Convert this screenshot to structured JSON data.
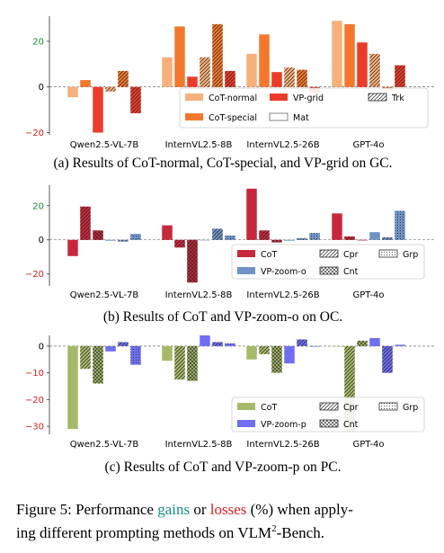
{
  "chart_data": [
    {
      "type": "bar",
      "caption": "(a) Results of CoT-normal, CoT-special, and VP-grid on GC.",
      "categories": [
        "Qwen2.5-VL-7B",
        "InternVL2.5-8B",
        "InternVL2.5-26B",
        "GPT-4o"
      ],
      "yticks": [
        -20,
        0,
        20
      ],
      "ylim": [
        -21,
        31
      ],
      "series": [
        {
          "name": "CoT-normal",
          "color": "#f8b07a",
          "hatch": "none",
          "values": [
            -4.5,
            13,
            14.5,
            29
          ]
        },
        {
          "name": "CoT-special",
          "color": "#f3782e",
          "hatch": "none",
          "values": [
            3,
            26.5,
            23,
            27.5
          ]
        },
        {
          "name": "VP-grid",
          "color": "#ed3b2a",
          "hatch": "none",
          "values": [
            -20,
            4.5,
            6.5,
            19.5
          ]
        },
        {
          "name": "",
          "color": "#f8b07a",
          "hatch": "diag",
          "values": [
            -2,
            13,
            8.5,
            14.5
          ]
        },
        {
          "name": "",
          "color": "#f3782e",
          "hatch": "diag",
          "values": [
            7,
            27.5,
            7.5,
            -1.5
          ]
        },
        {
          "name": "",
          "color": "#ed3b2a",
          "hatch": "diag",
          "values": [
            -11.5,
            7,
            -2.5,
            9.5
          ]
        }
      ],
      "legend": [
        {
          "label": "CoT-normal",
          "color": "#f8b07a",
          "pattern": "none"
        },
        {
          "label": "VP-grid",
          "color": "#ed3b2a",
          "pattern": "none"
        },
        {
          "label": "Trk",
          "color": "#ffffff",
          "pattern": "diag"
        },
        {
          "label": "CoT-special",
          "color": "#f3782e",
          "pattern": "none"
        },
        {
          "label": "Mat",
          "color": "#ffffff",
          "pattern": "none"
        }
      ]
    },
    {
      "type": "bar",
      "caption": "(b) Results of CoT and VP-zoom-o on OC.",
      "categories": [
        "Qwen2.5-VL-7B",
        "InternVL2.5-8B",
        "InternVL2.5-26B",
        "GPT-4o"
      ],
      "yticks": [
        -20,
        0,
        20
      ],
      "ylim": [
        -27,
        32
      ],
      "series": [
        {
          "name": "CoT",
          "color": "#c8283c",
          "hatch": "none",
          "values": [
            -9.5,
            8.5,
            30,
            15.5
          ]
        },
        {
          "name": "",
          "color": "#c8283c",
          "hatch": "diag",
          "values": [
            19.5,
            -4.5,
            5.5,
            2
          ]
        },
        {
          "name": "",
          "color": "#c8283c",
          "hatch": "cross",
          "values": [
            5.5,
            -25,
            -1.5,
            0
          ]
        },
        {
          "name": "VP-zoom-o",
          "color": "#6f93c4",
          "hatch": "none",
          "values": [
            -0.5,
            0,
            -0.5,
            4.5
          ]
        },
        {
          "name": "",
          "color": "#6f93c4",
          "hatch": "diag",
          "values": [
            -1,
            6.5,
            1,
            1.5
          ]
        },
        {
          "name": "",
          "color": "#6f93c4",
          "hatch": "dots",
          "values": [
            3.5,
            2.5,
            4,
            17
          ]
        }
      ],
      "legend": [
        {
          "label": "CoT",
          "color": "#c8283c",
          "pattern": "none"
        },
        {
          "label": "Cpr",
          "color": "#ffffff",
          "pattern": "diag"
        },
        {
          "label": "Grp",
          "color": "#ffffff",
          "pattern": "dots"
        },
        {
          "label": "VP-zoom-o",
          "color": "#6f93c4",
          "pattern": "none"
        },
        {
          "label": "Cnt",
          "color": "#ffffff",
          "pattern": "cross"
        }
      ]
    },
    {
      "type": "bar",
      "caption": "(c) Results of CoT and VP-zoom-p on PC.",
      "categories": [
        "Qwen2.5-VL-7B",
        "InternVL2.5-8B",
        "InternVL2.5-26B",
        "GPT-4o"
      ],
      "yticks": [
        -30,
        -20,
        -10,
        0
      ],
      "ylim": [
        -33,
        4
      ],
      "series": [
        {
          "name": "CoT",
          "color": "#a6b96a",
          "hatch": "none",
          "values": [
            -31,
            -5.5,
            -5,
            0
          ]
        },
        {
          "name": "",
          "color": "#a6b96a",
          "hatch": "diag",
          "values": [
            -8.5,
            -12.5,
            -3,
            -32
          ]
        },
        {
          "name": "",
          "color": "#a6b96a",
          "hatch": "cross",
          "values": [
            -14,
            -13,
            -10,
            2
          ]
        },
        {
          "name": "VP-zoom-p",
          "color": "#6f6ff0",
          "hatch": "none",
          "values": [
            -2,
            4,
            -6.5,
            3
          ]
        },
        {
          "name": "",
          "color": "#6f6ff0",
          "hatch": "diag",
          "values": [
            1.5,
            1.5,
            2.5,
            -10
          ]
        },
        {
          "name": "",
          "color": "#6f6ff0",
          "hatch": "dots",
          "values": [
            -7,
            1,
            0,
            0.5
          ]
        }
      ],
      "legend": [
        {
          "label": "CoT",
          "color": "#a6b96a",
          "pattern": "none"
        },
        {
          "label": "Cpr",
          "color": "#ffffff",
          "pattern": "diag"
        },
        {
          "label": "Grp",
          "color": "#ffffff",
          "pattern": "dots"
        },
        {
          "label": "VP-zoom-p",
          "color": "#6f6ff0",
          "pattern": "none"
        },
        {
          "label": "Cnt",
          "color": "#ffffff",
          "pattern": "cross"
        }
      ]
    }
  ],
  "figure_caption": {
    "prefix": "Figure 5: Performance ",
    "gains": "gains",
    "middle": " or ",
    "losses": "losses",
    "suffix_line1": " (%) when apply-",
    "line2_a": "ing different prompting methods on VLM",
    "line2_sup": "2",
    "line2_b": "-Bench.",
    "gain_color": "#1a8a8a",
    "loss_color": "#e02020"
  },
  "tick_colors": {
    "positive": "#1a8a3a",
    "negative": "#d42020",
    "zero": "#000000"
  }
}
